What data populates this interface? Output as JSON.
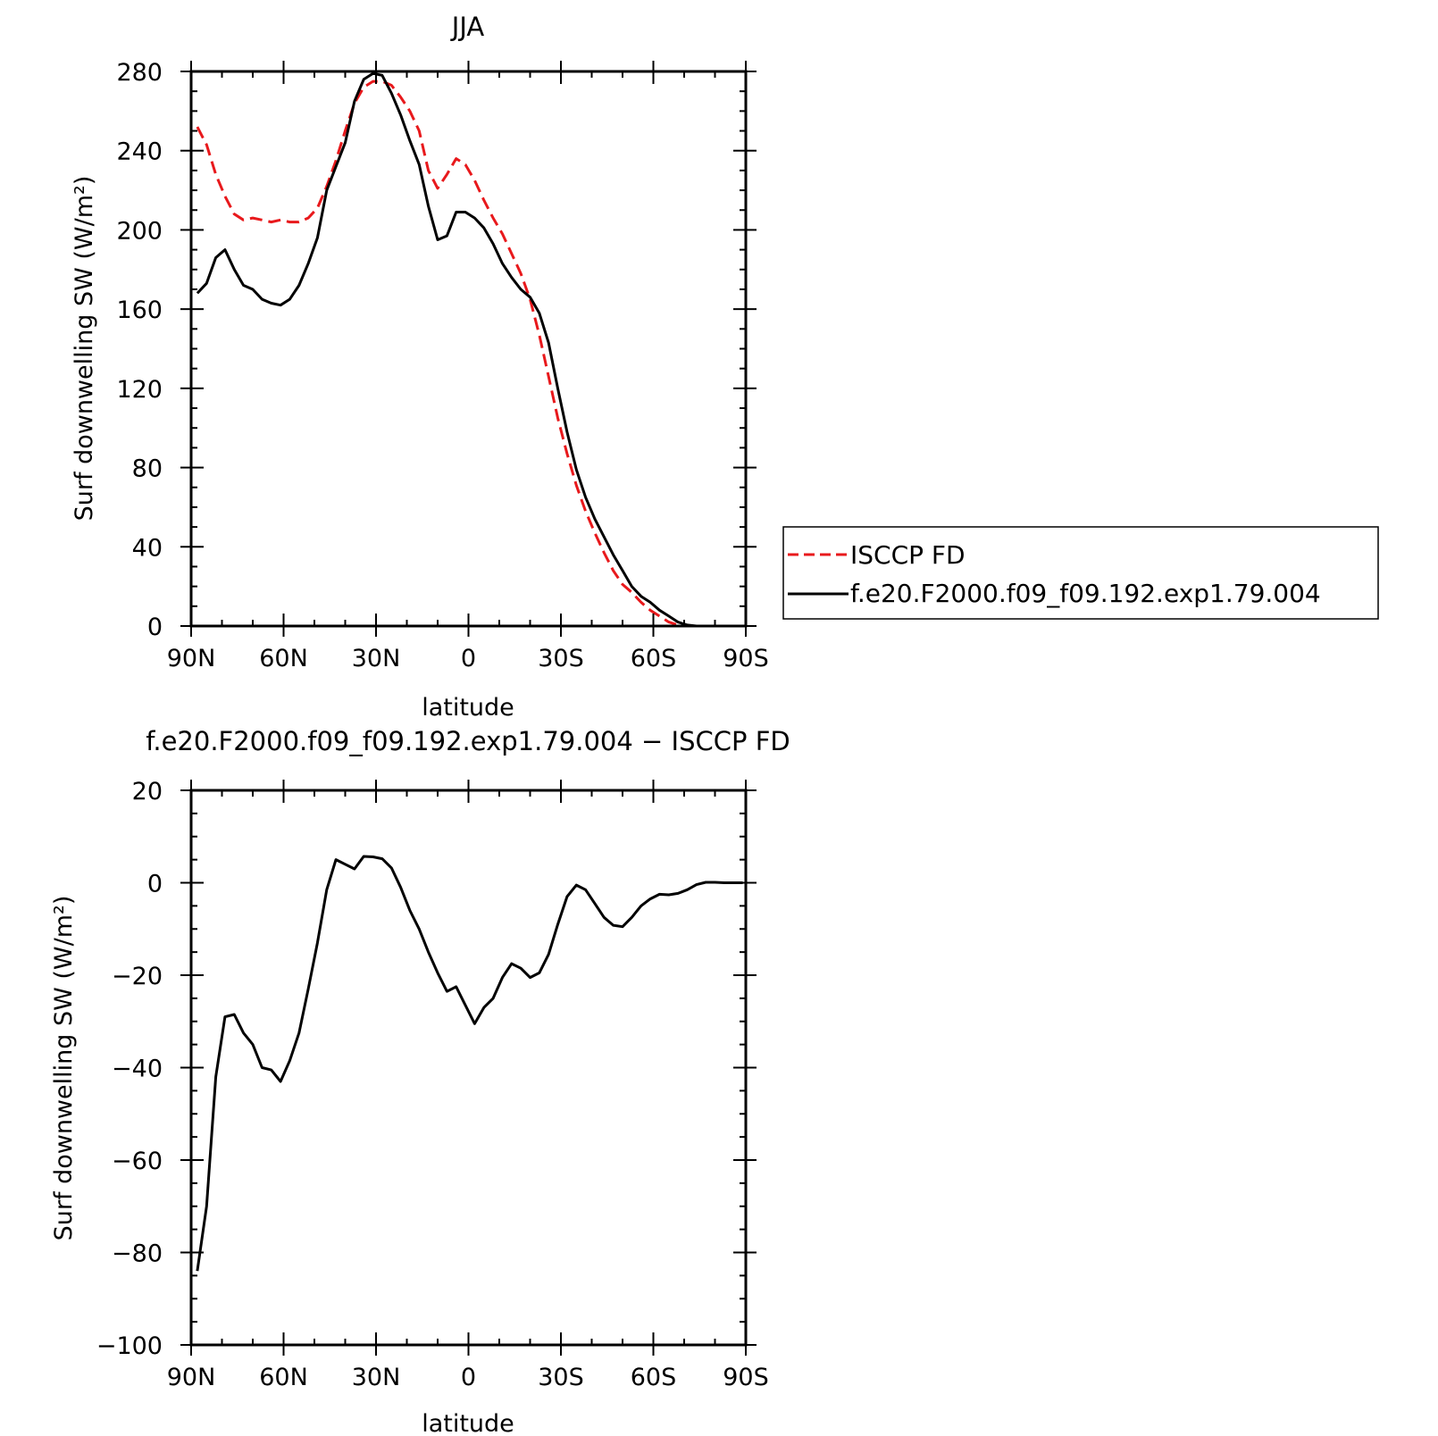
{
  "chart_data": [
    {
      "type": "line",
      "title": "JJA",
      "xlabel": "latitude",
      "ylabel": "Surf downwelling SW (W/m²)",
      "xlim": [
        90,
        -90
      ],
      "ylim": [
        0,
        280
      ],
      "x_ticks": [
        {
          "value": 90,
          "label": "90N"
        },
        {
          "value": 60,
          "label": "60N"
        },
        {
          "value": 30,
          "label": "30N"
        },
        {
          "value": 0,
          "label": "0"
        },
        {
          "value": -30,
          "label": "30S"
        },
        {
          "value": -60,
          "label": "60S"
        },
        {
          "value": -90,
          "label": "90S"
        }
      ],
      "y_ticks": [
        {
          "value": 0,
          "label": "0"
        },
        {
          "value": 40,
          "label": "40"
        },
        {
          "value": 80,
          "label": "80"
        },
        {
          "value": 120,
          "label": "120"
        },
        {
          "value": 160,
          "label": "160"
        },
        {
          "value": 200,
          "label": "200"
        },
        {
          "value": 240,
          "label": "240"
        },
        {
          "value": 280,
          "label": "280"
        }
      ],
      "legend_position": "right",
      "series": [
        {
          "name": "ISCCP FD",
          "color": "#e8191c",
          "dash": "dashed",
          "x": [
            88,
            85,
            82,
            79,
            76,
            73,
            70,
            67,
            64,
            61,
            58,
            55,
            52,
            49,
            46,
            43,
            40,
            37,
            34,
            31,
            28,
            25,
            22,
            19,
            16,
            13,
            10,
            7,
            4,
            1,
            -2,
            -5,
            -8,
            -11,
            -14,
            -17,
            -20,
            -23,
            -26,
            -29,
            -32,
            -35,
            -38,
            -41,
            -44,
            -47,
            -50,
            -53,
            -56,
            -59,
            -62,
            -65,
            -68,
            -71,
            -74,
            -77,
            -80,
            -83,
            -86,
            -89
          ],
          "values": [
            252,
            243,
            228,
            217,
            208,
            205,
            206,
            205,
            204,
            205,
            204,
            204,
            206,
            211,
            222,
            235,
            250,
            264,
            272,
            275,
            275,
            273,
            267,
            260,
            250,
            230,
            221,
            228,
            236,
            233,
            225,
            215,
            206,
            198,
            188,
            178,
            165,
            147,
            126,
            105,
            87,
            71,
            58,
            47,
            37,
            28,
            21,
            17,
            12,
            8,
            5,
            2,
            0.5,
            0,
            0,
            0,
            0,
            0,
            0,
            0
          ]
        },
        {
          "name": "f.e20.F2000.f09_f09.192.exp1.79.004",
          "color": "#000000",
          "dash": "solid",
          "x": [
            88,
            85,
            82,
            79,
            76,
            73,
            70,
            67,
            64,
            61,
            58,
            55,
            52,
            49,
            46,
            43,
            40,
            37,
            34,
            31,
            28,
            25,
            22,
            19,
            16,
            13,
            10,
            7,
            4,
            1,
            -2,
            -5,
            -8,
            -11,
            -14,
            -17,
            -20,
            -23,
            -26,
            -29,
            -32,
            -35,
            -38,
            -41,
            -44,
            -47,
            -50,
            -53,
            -56,
            -59,
            -62,
            -65,
            -68,
            -71,
            -74,
            -77,
            -80,
            -83,
            -86,
            -89
          ],
          "values": [
            168,
            173,
            186,
            190,
            180,
            172,
            170,
            165,
            163,
            162,
            165,
            172,
            183,
            196,
            220,
            232,
            244,
            265,
            276,
            279,
            278,
            269,
            258,
            245,
            233,
            212,
            195,
            197,
            209,
            209,
            206,
            201,
            193,
            183,
            176,
            170,
            166,
            158,
            143,
            120,
            98,
            79,
            65,
            54,
            45,
            36,
            28,
            20,
            15,
            12,
            8,
            5,
            2,
            0.5,
            0,
            0,
            0,
            0,
            0,
            0
          ]
        }
      ]
    },
    {
      "type": "line",
      "title": "f.e20.F2000.f09_f09.192.exp1.79.004 − ISCCP FD",
      "xlabel": "latitude",
      "ylabel": "Surf downwelling SW (W/m²)",
      "xlim": [
        90,
        -90
      ],
      "ylim": [
        -100,
        20
      ],
      "x_ticks": [
        {
          "value": 90,
          "label": "90N"
        },
        {
          "value": 60,
          "label": "60N"
        },
        {
          "value": 30,
          "label": "30N"
        },
        {
          "value": 0,
          "label": "0"
        },
        {
          "value": -30,
          "label": "30S"
        },
        {
          "value": -60,
          "label": "60S"
        },
        {
          "value": -90,
          "label": "90S"
        }
      ],
      "y_ticks": [
        {
          "value": 20,
          "label": "20"
        },
        {
          "value": 0,
          "label": "0"
        },
        {
          "value": -20,
          "label": "−20"
        },
        {
          "value": -40,
          "label": "−40"
        },
        {
          "value": -60,
          "label": "−60"
        },
        {
          "value": -80,
          "label": "−80"
        },
        {
          "value": -100,
          "label": "−100"
        }
      ],
      "series": [
        {
          "color": "#000000",
          "dash": "solid",
          "x": [
            88,
            85,
            82,
            79,
            76,
            73,
            70,
            67,
            64,
            61,
            58,
            55,
            52,
            49,
            46,
            43,
            40,
            37,
            34,
            31,
            28,
            25,
            22,
            19,
            16,
            13,
            10,
            7,
            4,
            1,
            -2,
            -5,
            -8,
            -11,
            -14,
            -17,
            -20,
            -23,
            -26,
            -29,
            -32,
            -35,
            -38,
            -41,
            -44,
            -47,
            -50,
            -53,
            -56,
            -59,
            -62,
            -65,
            -68,
            -71,
            -74,
            -77,
            -80,
            -83,
            -86,
            -89
          ],
          "values": [
            -84,
            -70,
            -42,
            -29,
            -28.5,
            -32.5,
            -35,
            -40,
            -40.5,
            -43,
            -38.5,
            -32.5,
            -23,
            -13,
            -1.5,
            5,
            4,
            3,
            5.7,
            5.6,
            5.2,
            3.2,
            -1,
            -6,
            -10,
            -15,
            -19.5,
            -23.5,
            -22.5,
            -26.5,
            -30.5,
            -27,
            -25,
            -20.5,
            -17.5,
            -18.5,
            -20.5,
            -19.5,
            -15.5,
            -9,
            -3,
            -0.5,
            -1.5,
            -4.5,
            -7.5,
            -9.2,
            -9.5,
            -7.5,
            -5,
            -3.5,
            -2.5,
            -2.6,
            -2.3,
            -1.5,
            -0.4,
            0.1,
            0.1,
            0,
            0,
            0
          ]
        }
      ]
    }
  ]
}
